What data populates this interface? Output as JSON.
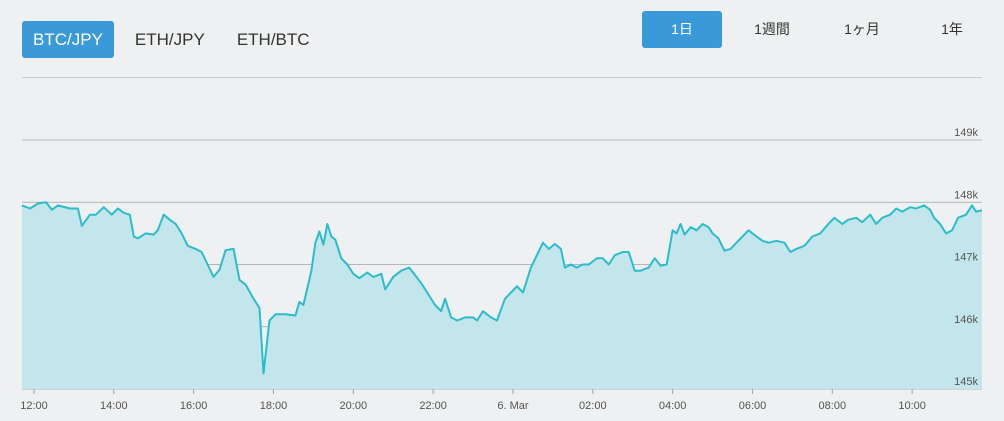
{
  "pairs": {
    "items": [
      {
        "label": "BTC/JPY",
        "active": true
      },
      {
        "label": "ETH/JPY",
        "active": false
      },
      {
        "label": "ETH/BTC",
        "active": false
      }
    ]
  },
  "ranges": {
    "items": [
      {
        "label": "1日",
        "active": true
      },
      {
        "label": "1週間",
        "active": false
      },
      {
        "label": "1ヶ月",
        "active": false
      },
      {
        "label": "1年",
        "active": false
      }
    ]
  },
  "colors": {
    "accent": "#3a9ad9",
    "line": "#2bbdcc",
    "fill": "#c2e6ec",
    "grid": "#9ea4a8"
  },
  "chart_data": {
    "type": "area",
    "ylim": [
      145000,
      149000
    ],
    "yticks": [
      {
        "v": 149000,
        "label": "149k"
      },
      {
        "v": 148000,
        "label": "148k"
      },
      {
        "v": 147000,
        "label": "147k"
      },
      {
        "v": 146000,
        "label": "146k"
      },
      {
        "v": 145000,
        "label": "145k"
      }
    ],
    "xlim": [
      11.7,
      35.75
    ],
    "xticks": [
      {
        "t": 12,
        "label": "12:00"
      },
      {
        "t": 14,
        "label": "14:00"
      },
      {
        "t": 16,
        "label": "16:00"
      },
      {
        "t": 18,
        "label": "18:00"
      },
      {
        "t": 20,
        "label": "20:00"
      },
      {
        "t": 22,
        "label": "22:00"
      },
      {
        "t": 24,
        "label": "6. Mar"
      },
      {
        "t": 26,
        "label": "02:00"
      },
      {
        "t": 28,
        "label": "04:00"
      },
      {
        "t": 30,
        "label": "06:00"
      },
      {
        "t": 32,
        "label": "08:00"
      },
      {
        "t": 34,
        "label": "10:00"
      }
    ],
    "points": [
      [
        11.7,
        147950
      ],
      [
        11.9,
        147900
      ],
      [
        12.1,
        147980
      ],
      [
        12.3,
        148000
      ],
      [
        12.45,
        147880
      ],
      [
        12.6,
        147950
      ],
      [
        12.9,
        147900
      ],
      [
        13.1,
        147900
      ],
      [
        13.2,
        147620
      ],
      [
        13.4,
        147800
      ],
      [
        13.55,
        147800
      ],
      [
        13.75,
        147920
      ],
      [
        13.95,
        147800
      ],
      [
        14.1,
        147900
      ],
      [
        14.25,
        147830
      ],
      [
        14.4,
        147800
      ],
      [
        14.5,
        147450
      ],
      [
        14.6,
        147420
      ],
      [
        14.8,
        147500
      ],
      [
        15.0,
        147480
      ],
      [
        15.1,
        147550
      ],
      [
        15.25,
        147800
      ],
      [
        15.4,
        147720
      ],
      [
        15.55,
        147650
      ],
      [
        15.7,
        147500
      ],
      [
        15.85,
        147300
      ],
      [
        16.05,
        147250
      ],
      [
        16.2,
        147200
      ],
      [
        16.35,
        147000
      ],
      [
        16.5,
        146800
      ],
      [
        16.65,
        146920
      ],
      [
        16.8,
        147230
      ],
      [
        17.0,
        147250
      ],
      [
        17.15,
        146750
      ],
      [
        17.3,
        146680
      ],
      [
        17.5,
        146450
      ],
      [
        17.65,
        146300
      ],
      [
        17.75,
        145250
      ],
      [
        17.9,
        146100
      ],
      [
        18.05,
        146200
      ],
      [
        18.3,
        146200
      ],
      [
        18.55,
        146180
      ],
      [
        18.65,
        146400
      ],
      [
        18.75,
        146350
      ],
      [
        18.95,
        146900
      ],
      [
        19.05,
        147350
      ],
      [
        19.15,
        147530
      ],
      [
        19.25,
        147320
      ],
      [
        19.35,
        147650
      ],
      [
        19.45,
        147450
      ],
      [
        19.55,
        147400
      ],
      [
        19.7,
        147100
      ],
      [
        19.85,
        147000
      ],
      [
        20.0,
        146850
      ],
      [
        20.15,
        146780
      ],
      [
        20.35,
        146870
      ],
      [
        20.5,
        146800
      ],
      [
        20.7,
        146850
      ],
      [
        20.8,
        146600
      ],
      [
        21.0,
        146800
      ],
      [
        21.2,
        146900
      ],
      [
        21.4,
        146950
      ],
      [
        21.5,
        146870
      ],
      [
        21.7,
        146700
      ],
      [
        21.85,
        146550
      ],
      [
        22.05,
        146350
      ],
      [
        22.2,
        146250
      ],
      [
        22.3,
        146450
      ],
      [
        22.45,
        146150
      ],
      [
        22.6,
        146100
      ],
      [
        22.8,
        146150
      ],
      [
        23.0,
        146150
      ],
      [
        23.1,
        146100
      ],
      [
        23.25,
        146250
      ],
      [
        23.45,
        146150
      ],
      [
        23.6,
        146100
      ],
      [
        23.8,
        146450
      ],
      [
        23.95,
        146550
      ],
      [
        24.1,
        146650
      ],
      [
        24.25,
        146550
      ],
      [
        24.45,
        146950
      ],
      [
        24.6,
        147150
      ],
      [
        24.75,
        147350
      ],
      [
        24.9,
        147250
      ],
      [
        25.05,
        147330
      ],
      [
        25.2,
        147250
      ],
      [
        25.3,
        146950
      ],
      [
        25.45,
        147000
      ],
      [
        25.6,
        146950
      ],
      [
        25.75,
        147000
      ],
      [
        25.9,
        147000
      ],
      [
        26.1,
        147100
      ],
      [
        26.25,
        147100
      ],
      [
        26.4,
        147000
      ],
      [
        26.55,
        147150
      ],
      [
        26.75,
        147200
      ],
      [
        26.9,
        147200
      ],
      [
        27.05,
        146900
      ],
      [
        27.2,
        146900
      ],
      [
        27.4,
        146950
      ],
      [
        27.55,
        147100
      ],
      [
        27.7,
        146980
      ],
      [
        27.85,
        147000
      ],
      [
        28.0,
        147550
      ],
      [
        28.1,
        147500
      ],
      [
        28.2,
        147650
      ],
      [
        28.3,
        147480
      ],
      [
        28.45,
        147600
      ],
      [
        28.6,
        147550
      ],
      [
        28.75,
        147650
      ],
      [
        28.9,
        147600
      ],
      [
        29.0,
        147500
      ],
      [
        29.15,
        147420
      ],
      [
        29.3,
        147220
      ],
      [
        29.45,
        147250
      ],
      [
        29.6,
        147350
      ],
      [
        29.75,
        147450
      ],
      [
        29.9,
        147550
      ],
      [
        30.1,
        147450
      ],
      [
        30.25,
        147380
      ],
      [
        30.4,
        147350
      ],
      [
        30.6,
        147380
      ],
      [
        30.8,
        147350
      ],
      [
        30.95,
        147200
      ],
      [
        31.1,
        147250
      ],
      [
        31.3,
        147300
      ],
      [
        31.5,
        147450
      ],
      [
        31.7,
        147500
      ],
      [
        31.9,
        147650
      ],
      [
        32.05,
        147750
      ],
      [
        32.25,
        147650
      ],
      [
        32.4,
        147720
      ],
      [
        32.6,
        147750
      ],
      [
        32.75,
        147680
      ],
      [
        32.95,
        147800
      ],
      [
        33.1,
        147650
      ],
      [
        33.25,
        147750
      ],
      [
        33.45,
        147800
      ],
      [
        33.6,
        147900
      ],
      [
        33.75,
        147850
      ],
      [
        33.95,
        147920
      ],
      [
        34.1,
        147900
      ],
      [
        34.3,
        147950
      ],
      [
        34.45,
        147880
      ],
      [
        34.55,
        147750
      ],
      [
        34.7,
        147650
      ],
      [
        34.85,
        147500
      ],
      [
        35.0,
        147550
      ],
      [
        35.15,
        147750
      ],
      [
        35.35,
        147800
      ],
      [
        35.5,
        147950
      ],
      [
        35.6,
        147850
      ],
      [
        35.75,
        147870
      ]
    ]
  }
}
